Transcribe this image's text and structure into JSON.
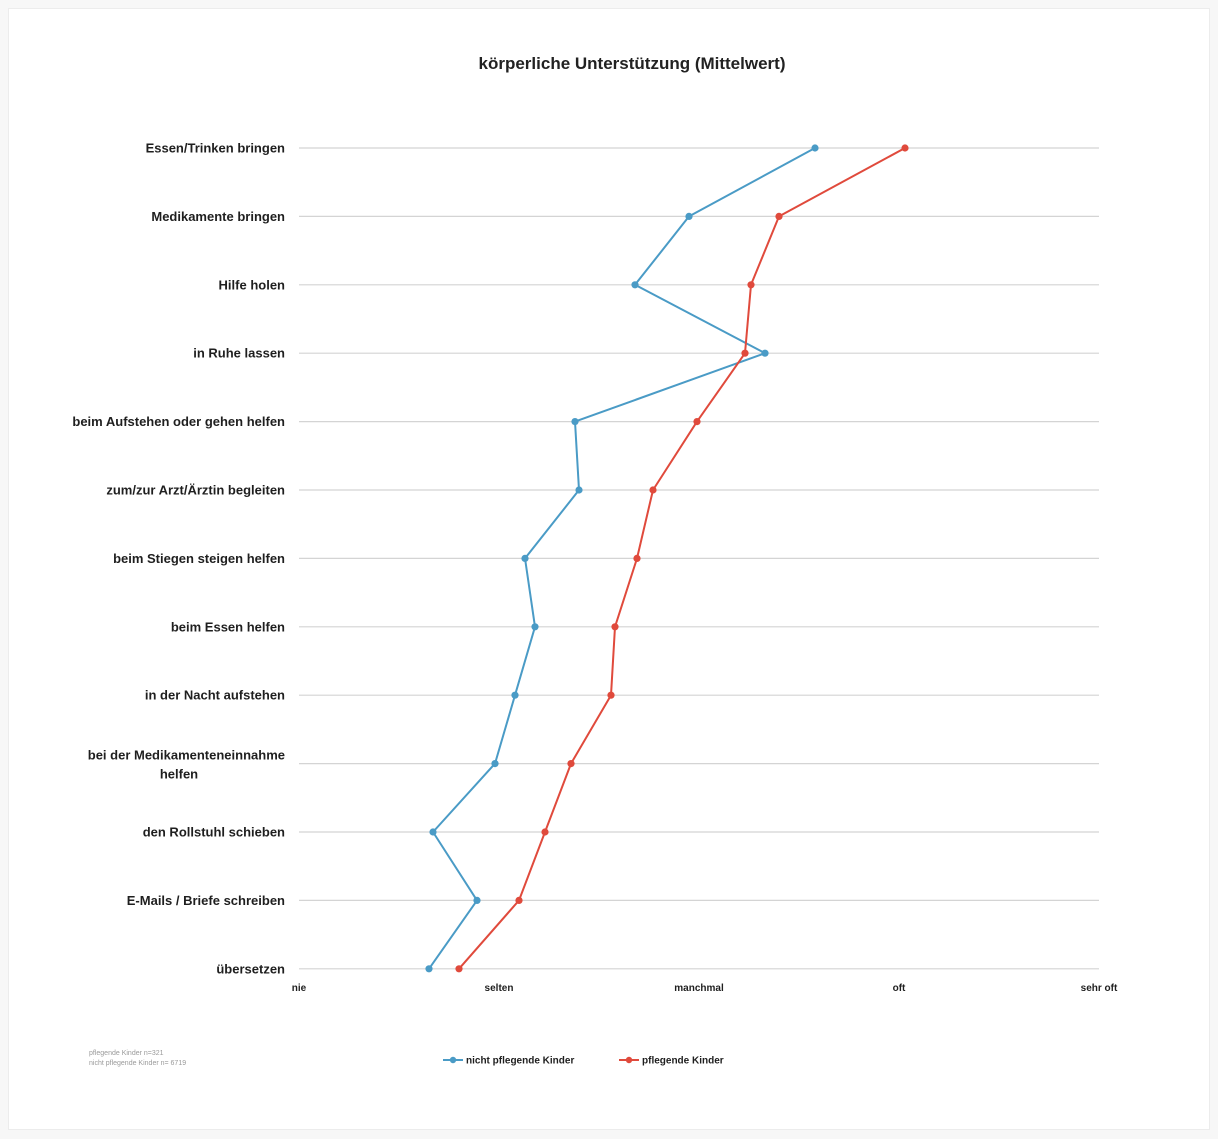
{
  "chart_data": {
    "type": "line",
    "title": "körperliche Unterstützung (Mittelwert)",
    "categories": [
      "Essen/Trinken bringen",
      "Medikamente bringen",
      "Hilfe holen",
      "in Ruhe lassen",
      "beim Aufstehen oder gehen helfen",
      "zum/zur Arzt/Ärztin begleiten",
      "beim Stiegen steigen helfen",
      "beim Essen helfen",
      "in der Nacht aufstehen",
      [
        "bei der Medikamenteneinnahme",
        "helfen"
      ],
      "den Rollstuhl schieben",
      "E-Mails / Briefe schreiben",
      "übersetzen"
    ],
    "x_ticks": [
      "nie",
      "selten",
      "manchmal",
      "oft",
      "sehr oft"
    ],
    "xlim": [
      0,
      4
    ],
    "orientation": "horizontal-values",
    "grid": true,
    "legend_position": "bottom",
    "series": [
      {
        "name": "nicht pflegende Kinder",
        "color": "#4a9bc6",
        "values": [
          2.58,
          1.95,
          1.68,
          2.33,
          1.38,
          1.4,
          1.13,
          1.18,
          1.08,
          0.98,
          0.67,
          0.89,
          0.65
        ]
      },
      {
        "name": "pflegende Kinder",
        "color": "#e04a3c",
        "values": [
          3.03,
          2.4,
          2.26,
          2.23,
          1.99,
          1.77,
          1.69,
          1.58,
          1.56,
          1.36,
          1.23,
          1.1,
          0.8
        ]
      }
    ],
    "notes": [
      "pflegende Kinder n=321",
      "nicht pflegende Kinder n= 6719"
    ]
  }
}
